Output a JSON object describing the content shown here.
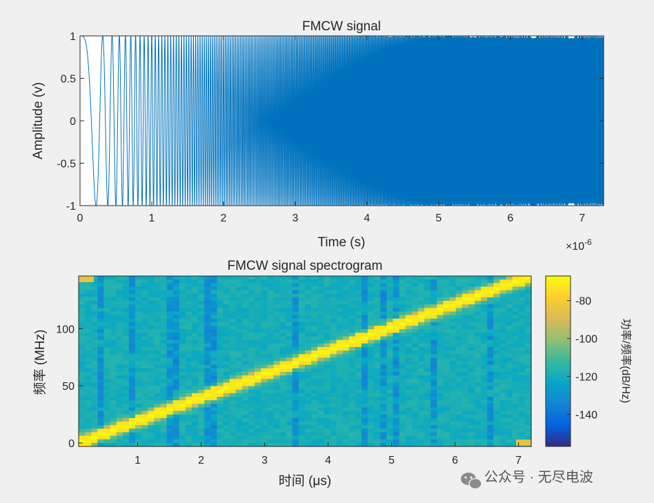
{
  "chart_data": [
    {
      "type": "line",
      "title": "FMCW signal",
      "xlabel": "Time (s)",
      "ylabel": "Amplitude (v)",
      "x_exponent_label": "×10",
      "x_exponent_power": "-6",
      "xlim": [
        0,
        7.3e-06
      ],
      "ylim": [
        -1,
        1
      ],
      "x_ticks": [
        "0",
        "1",
        "2",
        "3",
        "4",
        "5",
        "6",
        "7"
      ],
      "y_ticks": [
        "-1",
        "-0.5",
        "0",
        "0.5",
        "1"
      ],
      "line_color": "#0072BD",
      "series": [
        {
          "formula": "cos(pi * 2e13 * t^2)",
          "t_start": 0,
          "t_end": 7.3e-06,
          "chirp_slope_hz_per_s": 20000000000000.0
        }
      ],
      "grid": false
    },
    {
      "type": "heatmap",
      "title": "FMCW signal spectrogram",
      "xlabel": "时间 (μs)",
      "ylabel": "频率 (MHz)",
      "xlim": [
        0.07,
        7.2
      ],
      "ylim": [
        -3,
        146
      ],
      "x_ticks": [
        "1",
        "2",
        "3",
        "4",
        "5",
        "6",
        "7"
      ],
      "y_ticks": [
        "0",
        "50",
        "100"
      ],
      "chirp_line": {
        "f_start_mhz": 0,
        "f_end_mhz": 146,
        "width_mhz": 4
      },
      "colorbar": {
        "label": "功率/频率(dB/Hz)",
        "range": [
          -157,
          -67
        ],
        "ticks": [
          "-80",
          "-100",
          "-120",
          "-140"
        ],
        "colormap": "parula"
      },
      "grid": false
    }
  ],
  "watermark": {
    "text": "公众号 · 无尽电波",
    "icon": "wechat-icon"
  }
}
